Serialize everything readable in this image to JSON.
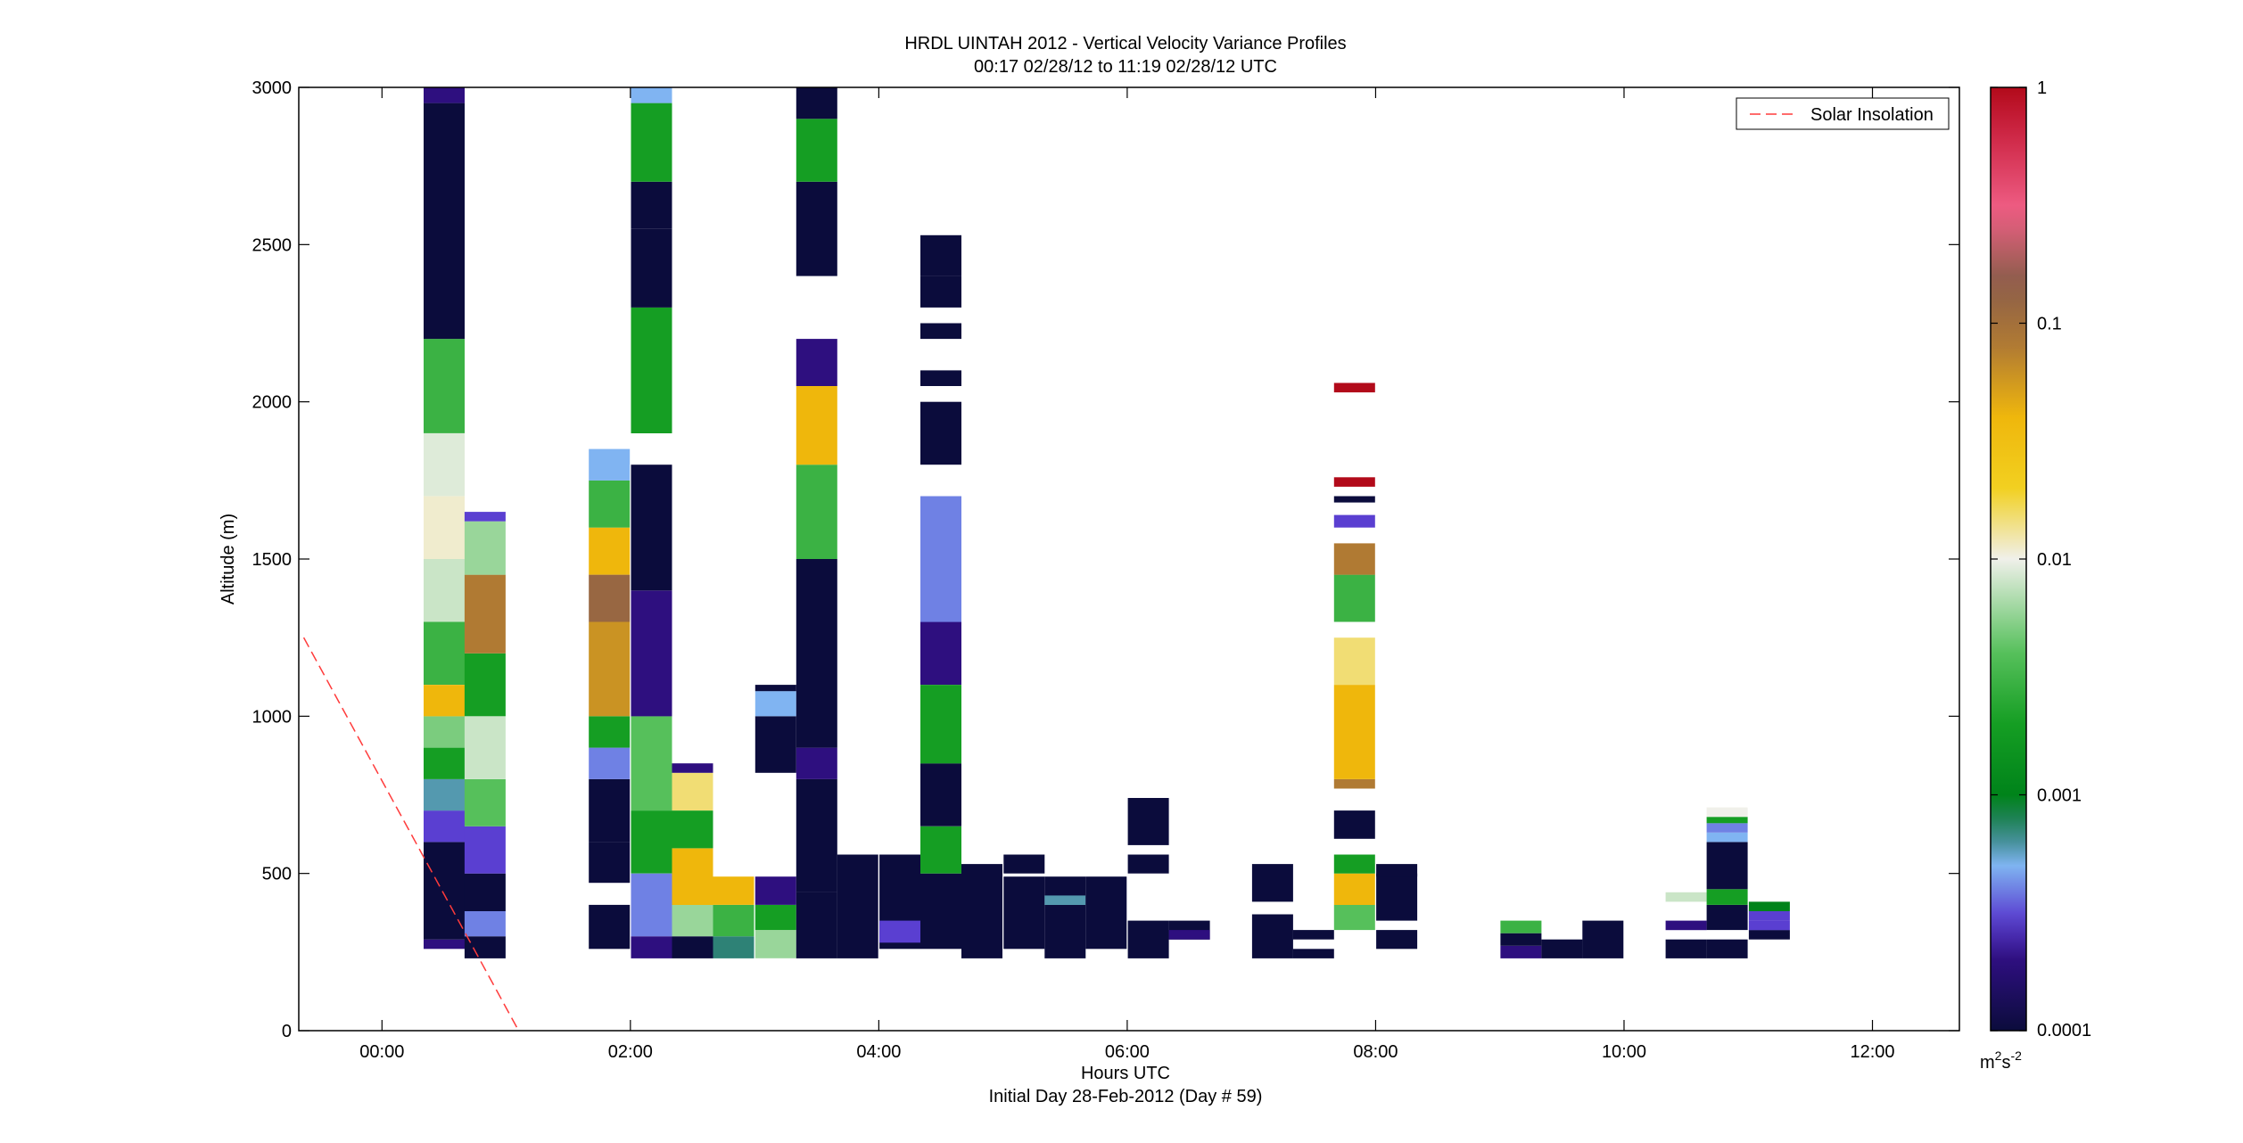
{
  "chart_data": {
    "type": "heatmap",
    "title": "HRDL UINTAH 2012 - Vertical Velocity Variance Profiles",
    "subtitle": "00:17 02/28/12 to 11:19 02/28/12  UTC",
    "xlabel": "Hours UTC",
    "xlabel2": "Initial Day 28-Feb-2012 (Day # 59)",
    "ylabel": "Altitude (m)",
    "xlim": [
      -0.67,
      12.7
    ],
    "ylim": [
      0,
      3000
    ],
    "xticks": [
      {
        "value": 0,
        "label": "00:00"
      },
      {
        "value": 2,
        "label": "02:00"
      },
      {
        "value": 4,
        "label": "04:00"
      },
      {
        "value": 6,
        "label": "06:00"
      },
      {
        "value": 8,
        "label": "08:00"
      },
      {
        "value": 10,
        "label": "10:00"
      },
      {
        "value": 12,
        "label": "12:00"
      }
    ],
    "yticks": [
      {
        "value": 0,
        "label": "0"
      },
      {
        "value": 500,
        "label": "500"
      },
      {
        "value": 1000,
        "label": "1000"
      },
      {
        "value": 1500,
        "label": "1500"
      },
      {
        "value": 2000,
        "label": "2000"
      },
      {
        "value": 2500,
        "label": "2500"
      },
      {
        "value": 3000,
        "label": "3000"
      }
    ],
    "colorbar": {
      "scale": "log",
      "range": [
        0.0001,
        1
      ],
      "ticks": [
        {
          "value": 0.0001,
          "label": "0.0001"
        },
        {
          "value": 0.001,
          "label": "0.001"
        },
        {
          "value": 0.01,
          "label": "0.01"
        },
        {
          "value": 0.1,
          "label": "0.1"
        },
        {
          "value": 1,
          "label": "1"
        }
      ],
      "unit_main": "m",
      "unit_sup1": "2",
      "unit_mid": "s",
      "unit_sup2": "-2",
      "stops": [
        {
          "v": 0.0001,
          "c": "#0b0c3c"
        },
        {
          "v": 0.0002,
          "c": "#2e0f7f"
        },
        {
          "v": 0.0003,
          "c": "#5a3fd1"
        },
        {
          "v": 0.0005,
          "c": "#80b4f2"
        },
        {
          "v": 0.0007,
          "c": "#2e8276"
        },
        {
          "v": 0.001,
          "c": "#00831a"
        },
        {
          "v": 0.002,
          "c": "#159e23"
        },
        {
          "v": 0.004,
          "c": "#56c05b"
        },
        {
          "v": 0.007,
          "c": "#b3deb2"
        },
        {
          "v": 0.01,
          "c": "#f0f0ea"
        },
        {
          "v": 0.02,
          "c": "#f2d020"
        },
        {
          "v": 0.04,
          "c": "#efb70c"
        },
        {
          "v": 0.08,
          "c": "#b07a33"
        },
        {
          "v": 0.15,
          "c": "#8b5d4a"
        },
        {
          "v": 0.3,
          "c": "#ef5f85"
        },
        {
          "v": 0.6,
          "c": "#d02a4a"
        },
        {
          "v": 1,
          "c": "#b20a1a"
        }
      ]
    },
    "bin_height_m": 30,
    "columns": [
      {
        "t": 0.5,
        "w": 0.33,
        "segments": [
          [
            260,
            290,
            0.0002
          ],
          [
            290,
            600,
            0.0001
          ],
          [
            600,
            700,
            0.0003
          ],
          [
            700,
            800,
            0.0006
          ],
          [
            800,
            900,
            0.002
          ],
          [
            900,
            1000,
            0.005
          ],
          [
            1000,
            1100,
            0.04
          ],
          [
            1100,
            1300,
            0.003
          ],
          [
            1300,
            1500,
            0.008
          ],
          [
            1500,
            1700,
            0.011
          ],
          [
            1700,
            1900,
            0.009
          ],
          [
            1900,
            2200,
            0.003
          ],
          [
            2200,
            2950,
            0.0001
          ],
          [
            2950,
            3000,
            0.0002
          ]
        ]
      },
      {
        "t": 0.83,
        "w": 0.33,
        "segments": [
          [
            230,
            300,
            0.0001
          ],
          [
            300,
            380,
            0.0004
          ],
          [
            380,
            500,
            0.0001
          ],
          [
            500,
            650,
            0.0003
          ],
          [
            650,
            800,
            0.004
          ],
          [
            800,
            1000,
            0.008
          ],
          [
            1000,
            1200,
            0.002
          ],
          [
            1200,
            1450,
            0.08
          ],
          [
            1450,
            1620,
            0.006
          ],
          [
            1620,
            1650,
            0.0003
          ]
        ]
      },
      {
        "t": 1.83,
        "w": 0.33,
        "segments": [
          [
            260,
            400,
            0.0001
          ],
          [
            470,
            600,
            0.0001
          ],
          [
            600,
            800,
            0.0001
          ],
          [
            800,
            900,
            0.0004
          ],
          [
            900,
            1000,
            0.002
          ],
          [
            1000,
            1300,
            0.06
          ],
          [
            1300,
            1450,
            0.12
          ],
          [
            1450,
            1600,
            0.04
          ],
          [
            1600,
            1750,
            0.003
          ],
          [
            1750,
            1850,
            0.0005
          ]
        ]
      },
      {
        "t": 2.17,
        "w": 0.33,
        "segments": [
          [
            230,
            300,
            0.0002
          ],
          [
            300,
            500,
            0.0004
          ],
          [
            500,
            700,
            0.002
          ],
          [
            700,
            1000,
            0.004
          ],
          [
            1000,
            1400,
            0.0002
          ],
          [
            1400,
            1800,
            0.0001
          ],
          [
            1900,
            2300,
            0.002
          ],
          [
            2300,
            2550,
            0.0001
          ],
          [
            2550,
            2700,
            0.0001
          ],
          [
            2700,
            2950,
            0.002
          ],
          [
            2950,
            3000,
            0.0005
          ]
        ]
      },
      {
        "t": 2.5,
        "w": 0.33,
        "segments": [
          [
            230,
            300,
            0.0001
          ],
          [
            300,
            400,
            0.006
          ],
          [
            400,
            580,
            0.04
          ],
          [
            580,
            700,
            0.002
          ],
          [
            700,
            820,
            0.015
          ],
          [
            820,
            850,
            0.0002
          ]
        ]
      },
      {
        "t": 2.83,
        "w": 0.33,
        "segments": [
          [
            230,
            300,
            0.0007
          ],
          [
            300,
            400,
            0.003
          ],
          [
            400,
            490,
            0.04
          ]
        ]
      },
      {
        "t": 3.17,
        "w": 0.33,
        "segments": [
          [
            230,
            320,
            0.006
          ],
          [
            320,
            400,
            0.002
          ],
          [
            400,
            490,
            0.0002
          ],
          [
            820,
            1000,
            0.0001
          ],
          [
            1000,
            1080,
            0.0005
          ],
          [
            1080,
            1100,
            0.0001
          ]
        ]
      },
      {
        "t": 3.5,
        "w": 0.33,
        "segments": [
          [
            230,
            440,
            0.0001
          ],
          [
            440,
            800,
            0.0001
          ],
          [
            800,
            900,
            0.0002
          ],
          [
            900,
            1500,
            0.0001
          ],
          [
            1500,
            1800,
            0.003
          ],
          [
            1800,
            2050,
            0.04
          ],
          [
            2050,
            2200,
            0.0002
          ],
          [
            2400,
            2700,
            0.0001
          ],
          [
            2700,
            2900,
            0.002
          ],
          [
            2900,
            3000,
            0.0001
          ]
        ]
      },
      {
        "t": 3.83,
        "w": 0.33,
        "segments": [
          [
            230,
            560,
            0.0001
          ]
        ]
      },
      {
        "t": 4.17,
        "w": 0.33,
        "segments": [
          [
            260,
            560,
            0.0001
          ],
          [
            280,
            350,
            0.0003
          ]
        ]
      },
      {
        "t": 4.5,
        "w": 0.33,
        "segments": [
          [
            260,
            500,
            0.0001
          ],
          [
            500,
            650,
            0.002
          ],
          [
            650,
            850,
            0.0001
          ],
          [
            850,
            1100,
            0.002
          ],
          [
            1100,
            1300,
            0.0002
          ],
          [
            1300,
            1700,
            0.0004
          ],
          [
            1800,
            2000,
            0.0001
          ],
          [
            2050,
            2100,
            0.0001
          ],
          [
            2200,
            2250,
            0.0001
          ],
          [
            2300,
            2400,
            0.0001
          ],
          [
            2400,
            2530,
            0.0001
          ]
        ]
      },
      {
        "t": 4.83,
        "w": 0.33,
        "segments": [
          [
            230,
            530,
            0.0001
          ]
        ]
      },
      {
        "t": 5.17,
        "w": 0.33,
        "segments": [
          [
            260,
            490,
            0.0001
          ],
          [
            500,
            560,
            0.0001
          ]
        ]
      },
      {
        "t": 5.5,
        "w": 0.33,
        "segments": [
          [
            230,
            490,
            0.0001
          ],
          [
            400,
            430,
            0.0006
          ]
        ]
      },
      {
        "t": 5.83,
        "w": 0.33,
        "segments": [
          [
            260,
            490,
            0.0001
          ]
        ]
      },
      {
        "t": 6.17,
        "w": 0.33,
        "segments": [
          [
            230,
            350,
            0.0001
          ],
          [
            500,
            560,
            0.0001
          ],
          [
            590,
            740,
            0.0001
          ]
        ]
      },
      {
        "t": 6.5,
        "w": 0.33,
        "segments": [
          [
            290,
            350,
            0.0001
          ],
          [
            290,
            320,
            0.0002
          ]
        ]
      },
      {
        "t": 7.17,
        "w": 0.33,
        "segments": [
          [
            230,
            370,
            0.0001
          ],
          [
            410,
            530,
            0.0001
          ]
        ]
      },
      {
        "t": 7.5,
        "w": 0.33,
        "segments": [
          [
            230,
            260,
            0.0001
          ],
          [
            290,
            320,
            0.0001
          ]
        ]
      },
      {
        "t": 7.83,
        "w": 0.33,
        "segments": [
          [
            320,
            400,
            0.004
          ],
          [
            400,
            500,
            0.04
          ],
          [
            500,
            560,
            0.002
          ],
          [
            610,
            700,
            0.0001
          ],
          [
            770,
            800,
            0.08
          ],
          [
            800,
            1100,
            0.04
          ],
          [
            1100,
            1250,
            0.015
          ],
          [
            1300,
            1450,
            0.003
          ],
          [
            1450,
            1550,
            0.08
          ],
          [
            1600,
            1640,
            0.0003
          ],
          [
            1680,
            1700,
            0.0001
          ],
          [
            1730,
            1760,
            1
          ],
          [
            2030,
            2060,
            1
          ]
        ]
      },
      {
        "t": 8.17,
        "w": 0.33,
        "segments": [
          [
            260,
            320,
            0.0001
          ],
          [
            350,
            500,
            0.0001
          ],
          [
            490,
            530,
            0.0001
          ]
        ]
      },
      {
        "t": 9.17,
        "w": 0.33,
        "segments": [
          [
            230,
            270,
            0.0002
          ],
          [
            270,
            310,
            0.0001
          ],
          [
            310,
            350,
            0.003
          ]
        ]
      },
      {
        "t": 9.5,
        "w": 0.33,
        "segments": [
          [
            230,
            290,
            0.0001
          ]
        ]
      },
      {
        "t": 9.83,
        "w": 0.33,
        "segments": [
          [
            230,
            350,
            0.0001
          ]
        ]
      },
      {
        "t": 10.5,
        "w": 0.33,
        "segments": [
          [
            230,
            290,
            0.0001
          ],
          [
            320,
            350,
            0.0002
          ],
          [
            410,
            440,
            0.008
          ]
        ]
      },
      {
        "t": 10.83,
        "w": 0.33,
        "segments": [
          [
            230,
            290,
            0.0001
          ],
          [
            320,
            400,
            0.0001
          ],
          [
            400,
            450,
            0.002
          ],
          [
            450,
            600,
            0.0001
          ],
          [
            600,
            630,
            0.0005
          ],
          [
            630,
            660,
            0.0004
          ],
          [
            660,
            680,
            0.002
          ],
          [
            680,
            710,
            0.01
          ]
        ]
      },
      {
        "t": 11.17,
        "w": 0.33,
        "segments": [
          [
            290,
            320,
            0.0001
          ],
          [
            320,
            350,
            0.0003
          ],
          [
            350,
            380,
            0.0003
          ],
          [
            380,
            410,
            0.001
          ]
        ]
      }
    ],
    "overlay": {
      "name": "Solar Insolation",
      "color": "#ff3b3b",
      "style": "dashed",
      "points": [
        [
          -0.63,
          1250
        ],
        [
          1.1,
          0
        ]
      ]
    },
    "legend": {
      "placement": "top-right",
      "entries": [
        "Solar Insolation"
      ]
    }
  }
}
